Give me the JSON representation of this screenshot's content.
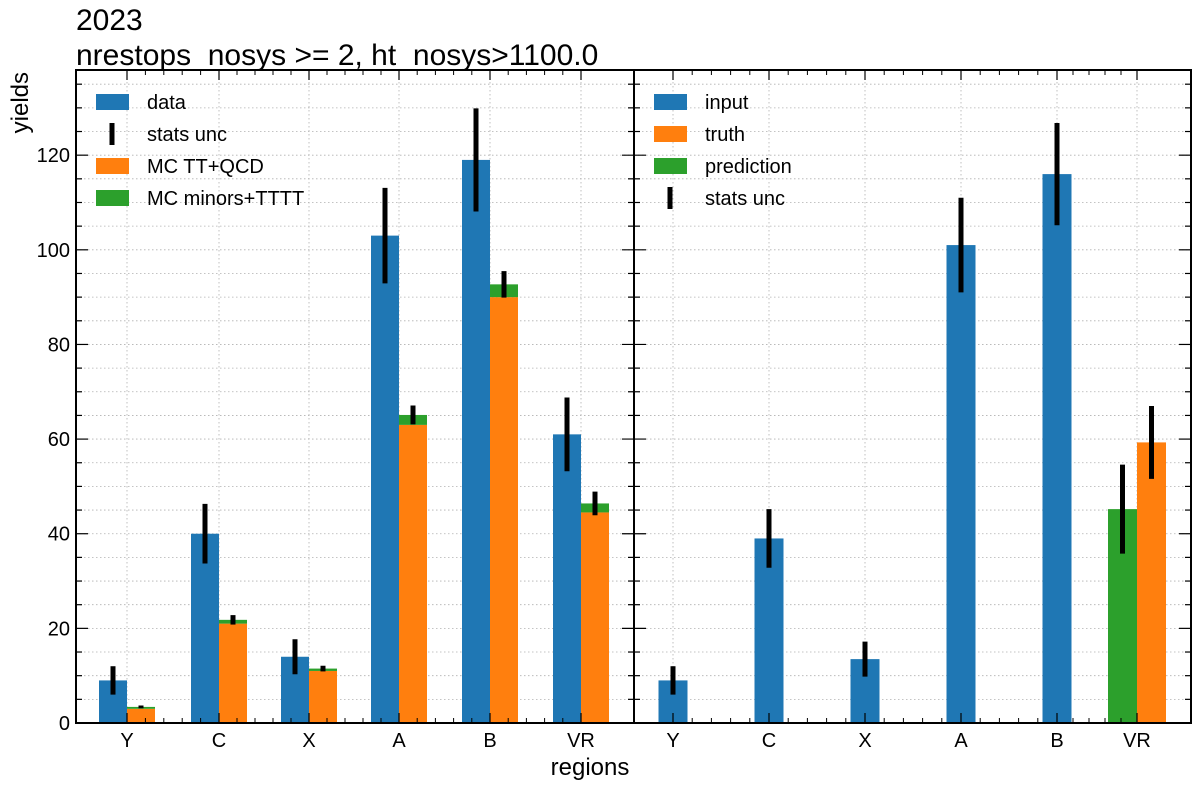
{
  "chart_data": [
    {
      "type": "bar",
      "panel": "left",
      "title": [
        "2023",
        "nrestops_nosys >= 2, ht_nosys>1100.0"
      ],
      "xlabel": "regions",
      "ylabel": "yields",
      "categories": [
        "Y",
        "C",
        "X",
        "A",
        "B",
        "VR"
      ],
      "ylim": [
        0,
        138
      ],
      "yticks": [
        0,
        20,
        40,
        60,
        80,
        100,
        120
      ],
      "grid": true,
      "legend_position": "top-left",
      "series": [
        {
          "name": "data",
          "color": "#1f77b4",
          "role": "bar-left",
          "values": [
            9,
            40,
            14,
            103,
            119,
            61
          ],
          "errors": [
            3,
            6.3,
            3.7,
            10.1,
            10.9,
            7.8
          ]
        },
        {
          "name": "MC TT+QCD",
          "color": "#ff7f0e",
          "role": "stack-bottom",
          "values": [
            3.0,
            21.0,
            11.0,
            63.0,
            90.0,
            44.5
          ]
        },
        {
          "name": "MC minors+TTTT",
          "color": "#2ca02c",
          "role": "stack-top",
          "values": [
            0.4,
            0.8,
            0.5,
            2.1,
            2.7,
            1.9
          ],
          "errors": [
            0.3,
            1.0,
            0.6,
            2.0,
            2.8,
            2.5
          ]
        }
      ],
      "legend": [
        {
          "label": "data",
          "kind": "patch",
          "color": "#1f77b4"
        },
        {
          "label": "stats unc",
          "kind": "errbar",
          "color": "#000000"
        },
        {
          "label": "MC TT+QCD",
          "kind": "patch",
          "color": "#ff7f0e"
        },
        {
          "label": "MC minors+TTTT",
          "kind": "patch",
          "color": "#2ca02c"
        }
      ]
    },
    {
      "type": "bar",
      "panel": "right",
      "categories": [
        "Y",
        "C",
        "X",
        "A",
        "B",
        "VR"
      ],
      "ylim": [
        0,
        138
      ],
      "grid": true,
      "legend_position": "top-left",
      "series": [
        {
          "name": "input",
          "color": "#1f77b4",
          "values": [
            9,
            39,
            13.5,
            101,
            116,
            null
          ],
          "errors": [
            3,
            6.2,
            3.7,
            10,
            10.8,
            null
          ]
        },
        {
          "name": "truth",
          "color": "#ff7f0e",
          "values": [
            null,
            null,
            null,
            null,
            null,
            59.3
          ],
          "errors": [
            null,
            null,
            null,
            null,
            null,
            7.7
          ]
        },
        {
          "name": "prediction",
          "color": "#2ca02c",
          "values": [
            null,
            null,
            null,
            null,
            null,
            45.2
          ],
          "errors": [
            null,
            null,
            null,
            null,
            null,
            9.4
          ]
        }
      ],
      "legend": [
        {
          "label": "input",
          "kind": "patch",
          "color": "#1f77b4"
        },
        {
          "label": "truth",
          "kind": "patch",
          "color": "#ff7f0e"
        },
        {
          "label": "prediction",
          "kind": "patch",
          "color": "#2ca02c"
        },
        {
          "label": "stats unc",
          "kind": "errbar",
          "color": "#000000"
        }
      ]
    }
  ]
}
